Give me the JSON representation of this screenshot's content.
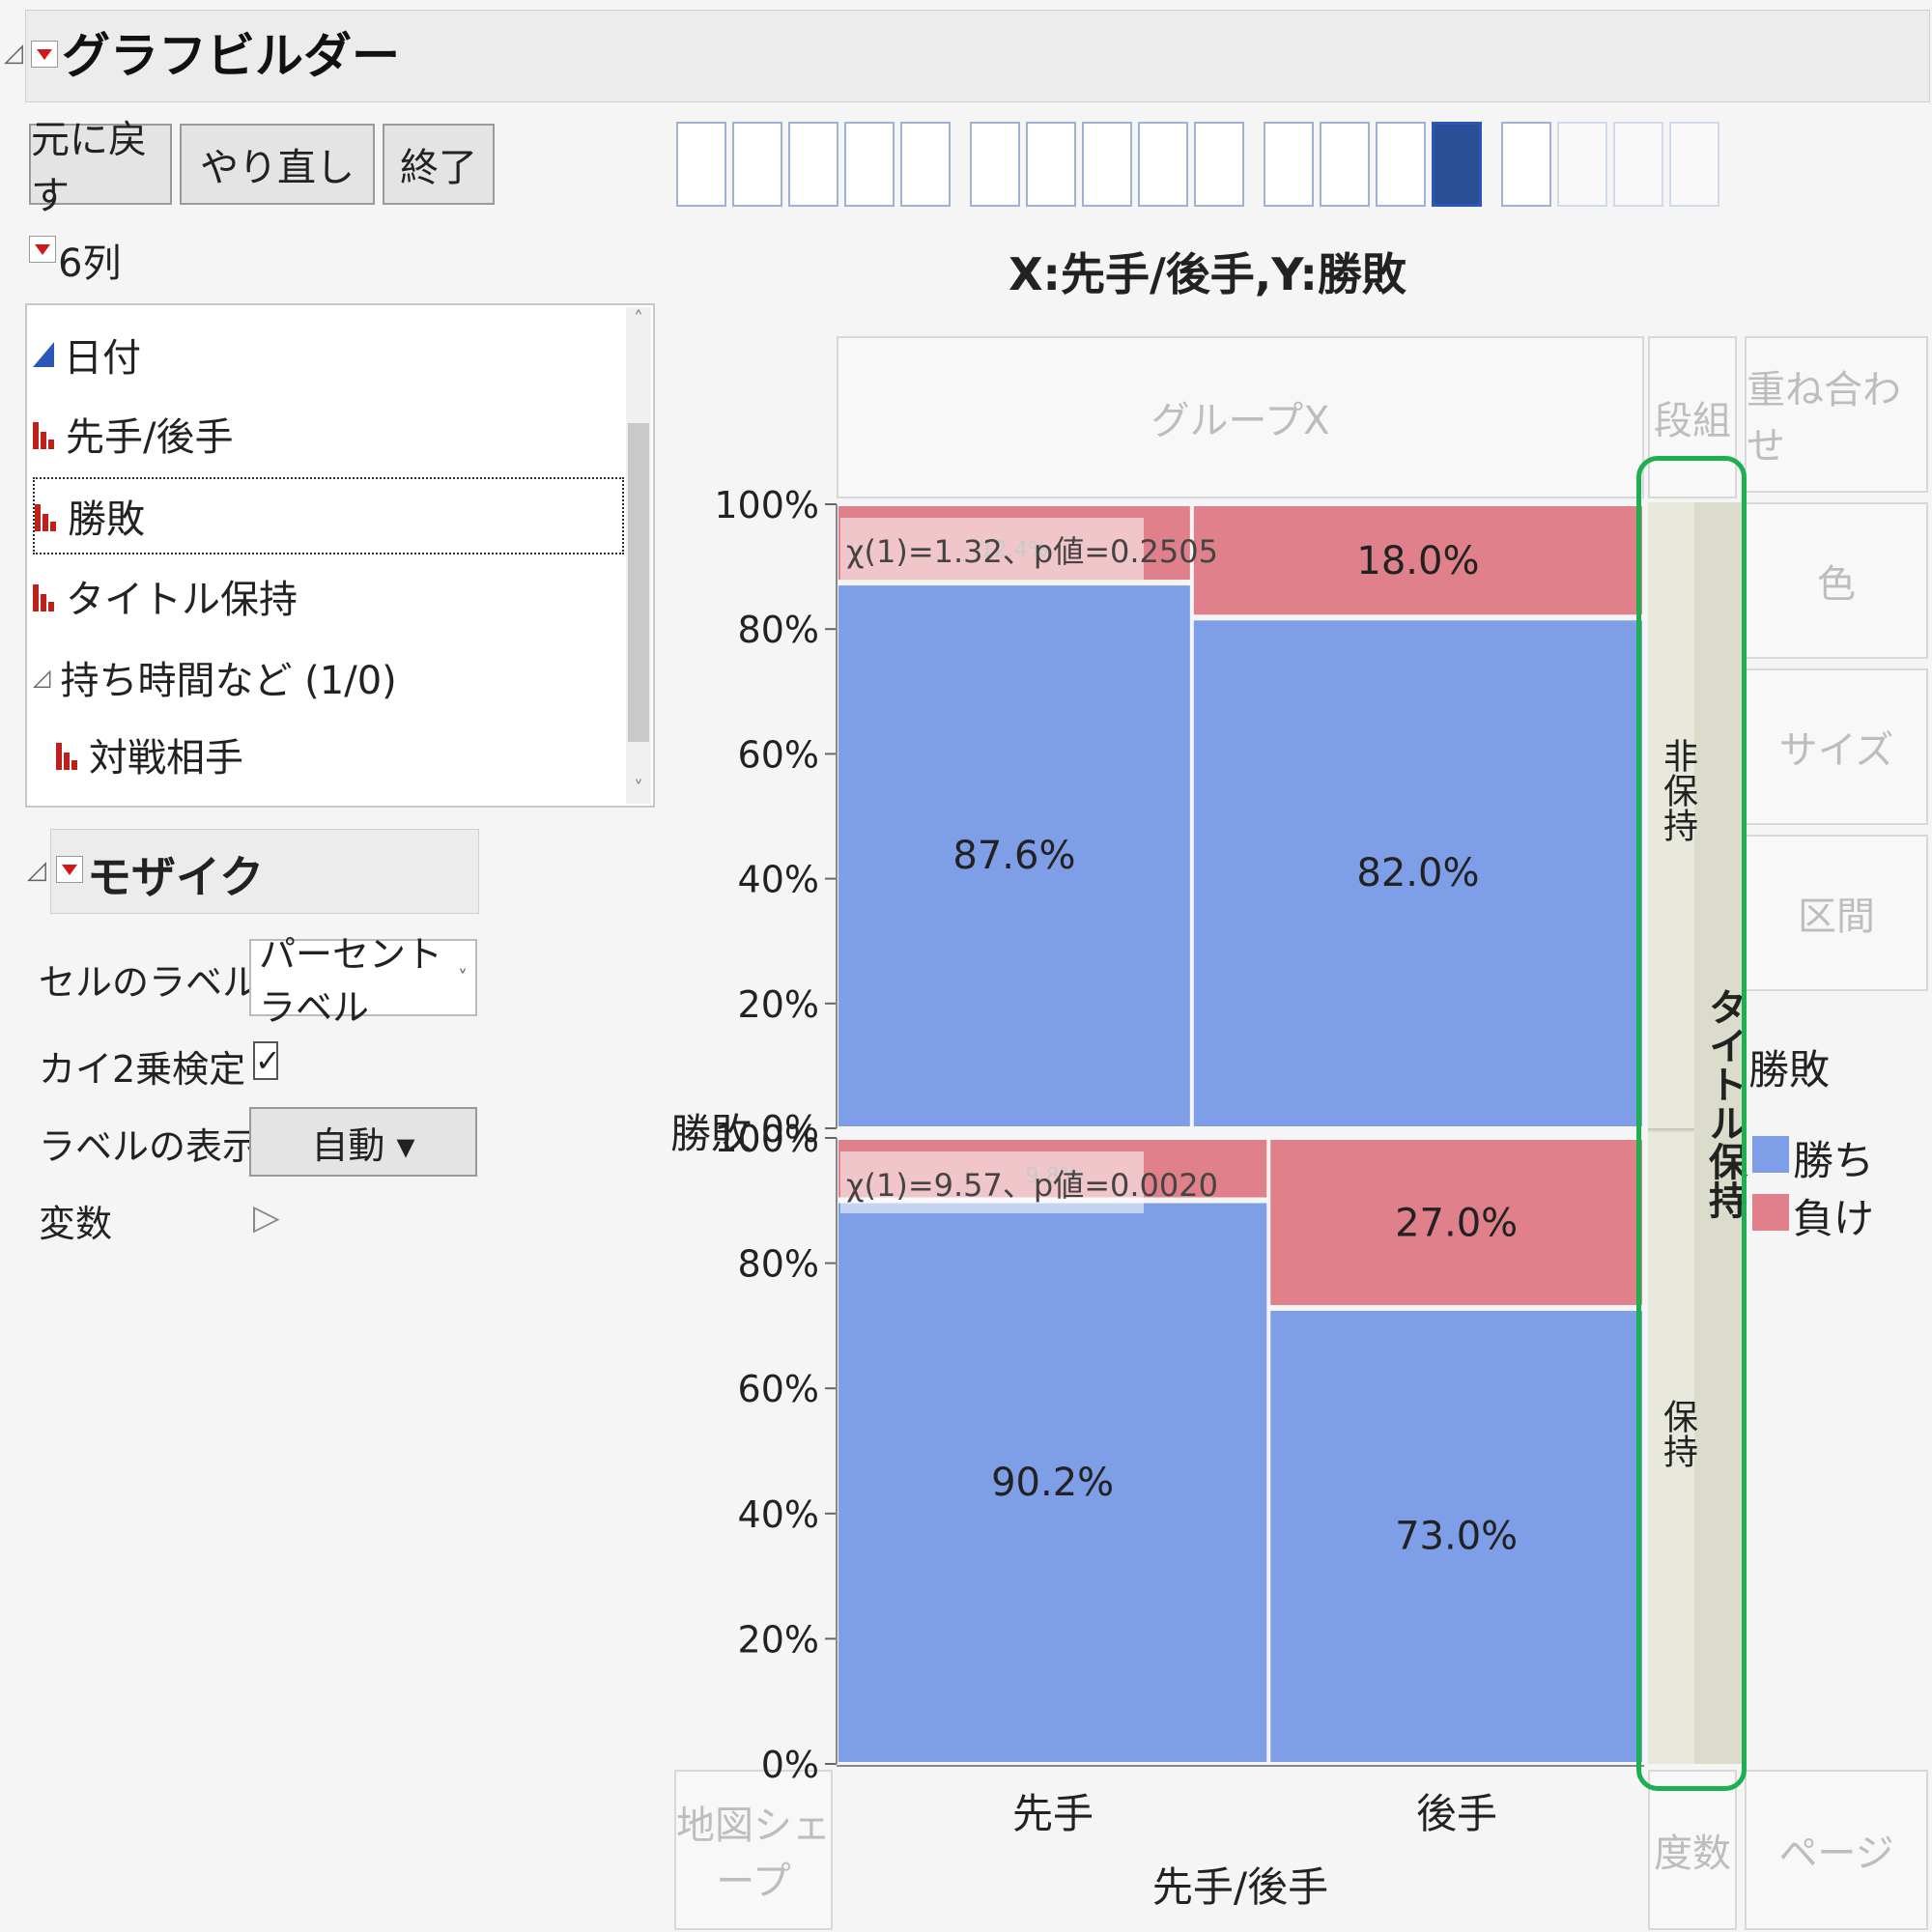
{
  "window": {
    "title": "グラフビルダー"
  },
  "toolbar": {
    "undo": "元に戻す",
    "redo": "やり直し",
    "done": "終了"
  },
  "columns": {
    "count_label": "6列",
    "items": [
      {
        "label": "日付",
        "icon": "continuous-icon"
      },
      {
        "label": "先手/後手",
        "icon": "nominal-icon"
      },
      {
        "label": "勝敗",
        "icon": "nominal-icon",
        "selected": true
      },
      {
        "label": "タイトル保持",
        "icon": "nominal-icon"
      },
      {
        "label": "持ち時間など (1/0)",
        "icon": "group-disclosure-icon"
      },
      {
        "label": "対戦相手",
        "icon": "nominal-icon"
      }
    ]
  },
  "mosaic": {
    "header": "モザイク",
    "cell_label_caption": "セルのラベル",
    "cell_label_value": "パーセントラベル",
    "chi_square_caption": "カイ2乗検定",
    "chi_square_checked": true,
    "label_format_caption": "ラベルの表示形式",
    "label_format_value": "自動 ▾",
    "variables_caption": "変数"
  },
  "zones": {
    "group_x": "グループX",
    "wrap": "段組",
    "overlay": "重ね合わせ",
    "color": "色",
    "size": "サイズ",
    "interval": "区間",
    "map_shape": "地図シェープ",
    "freq": "度数",
    "page": "ページ"
  },
  "legend": {
    "title": "勝敗",
    "items": [
      {
        "label": "勝ち",
        "color": "#7f9ee8"
      },
      {
        "label": "負け",
        "color": "#e0808a"
      }
    ]
  },
  "chart_data": {
    "type": "mosaic",
    "title": "X:先手/後手,Y:勝敗",
    "xlabel": "先手/後手",
    "ylabel": "勝敗",
    "group_y_label": "タイトル保持",
    "categories": [
      "先手",
      "後手"
    ],
    "yticks": [
      "0%",
      "20%",
      "40%",
      "60%",
      "80%",
      "100%"
    ],
    "colors": {
      "勝ち": "#7f9ee8",
      "負け": "#e0808a"
    },
    "panels": [
      {
        "group": "非保持",
        "stat_text": "χ(1)=1.32、p値=0.2505",
        "column_share": [
          0.44,
          0.56
        ],
        "columns": [
          {
            "category": "先手",
            "win": 87.6,
            "lose": 12.4,
            "win_label": "87.6%",
            "lose_label": "12.4%"
          },
          {
            "category": "後手",
            "win": 82.0,
            "lose": 18.0,
            "win_label": "82.0%",
            "lose_label": "18.0%"
          }
        ]
      },
      {
        "group": "保持",
        "stat_text": "χ(1)=9.57、p値=0.0020",
        "column_share": [
          0.535,
          0.465
        ],
        "columns": [
          {
            "category": "先手",
            "win": 90.2,
            "lose": 9.8,
            "win_label": "90.2%",
            "lose_label": "9.8%"
          },
          {
            "category": "後手",
            "win": 73.0,
            "lose": 27.0,
            "win_label": "73.0%",
            "lose_label": "27.0%"
          }
        ]
      }
    ]
  }
}
